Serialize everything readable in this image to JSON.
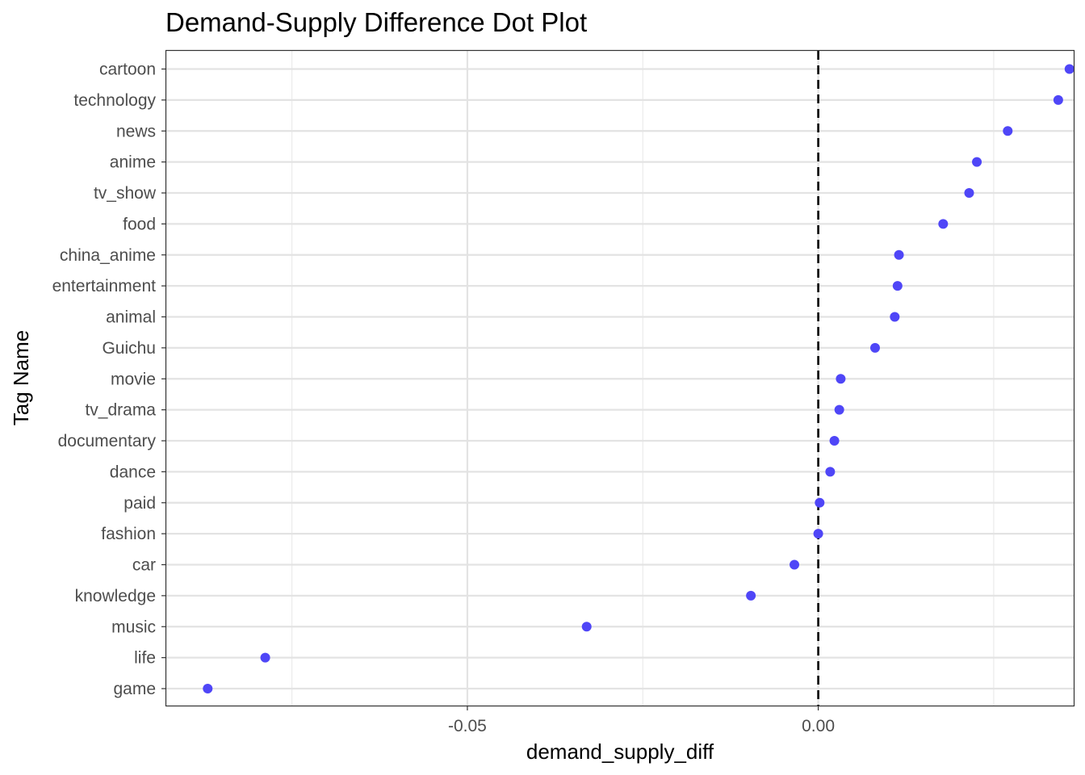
{
  "chart_data": {
    "type": "scatter",
    "title": "Demand-Supply Difference Dot Plot",
    "xlabel": "demand_supply_diff",
    "ylabel": "Tag Name",
    "categories": [
      "cartoon",
      "technology",
      "news",
      "anime",
      "tv_show",
      "food",
      "china_anime",
      "entertainment",
      "animal",
      "Guichu",
      "movie",
      "tv_drama",
      "documentary",
      "dance",
      "paid",
      "fashion",
      "car",
      "knowledge",
      "music",
      "life",
      "game"
    ],
    "values": [
      0.0358,
      0.0342,
      0.027,
      0.0226,
      0.0215,
      0.0178,
      0.0115,
      0.0113,
      0.0109,
      0.0081,
      0.0032,
      0.003,
      0.0023,
      0.0017,
      0.0002,
      0.0,
      -0.0034,
      -0.0096,
      -0.033,
      -0.0788,
      -0.087
    ],
    "xlim": [
      -0.0929,
      0.0364
    ],
    "xticks": [
      -0.05,
      0.0
    ],
    "xtick_labels": [
      "-0.05",
      "0.00"
    ],
    "reference_line": {
      "x": 0.0,
      "style": "dashed"
    },
    "point_color": "#4f46f7",
    "grid": true
  }
}
